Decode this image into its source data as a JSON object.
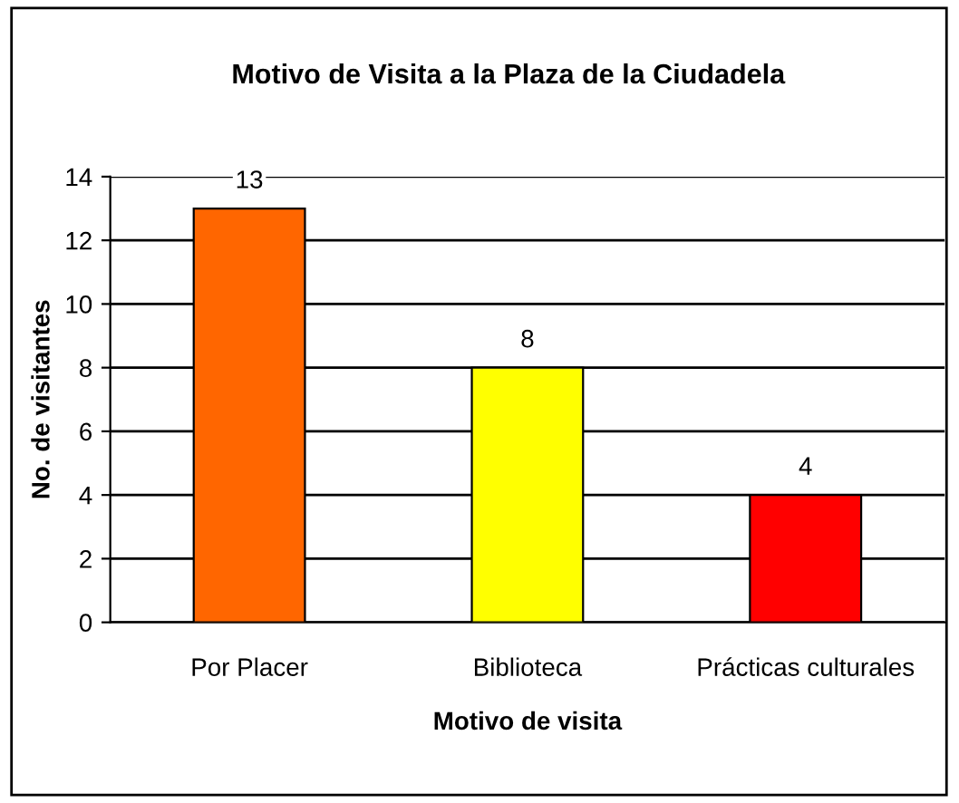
{
  "chart_data": {
    "type": "bar",
    "title": "Motivo de Visita a la Plaza de la Ciudadela",
    "xlabel": "Motivo de visita",
    "ylabel": "No. de visitantes",
    "categories": [
      "Por Placer",
      "Biblioteca",
      "Prácticas culturales"
    ],
    "values": [
      13,
      8,
      4
    ],
    "colors": [
      "#ff6600",
      "#ffff00",
      "#ff0000"
    ],
    "ylim": [
      0,
      14
    ],
    "yticks": [
      0,
      2,
      4,
      6,
      8,
      10,
      12,
      14
    ],
    "grid": "y",
    "data_labels": true,
    "legend": false
  }
}
